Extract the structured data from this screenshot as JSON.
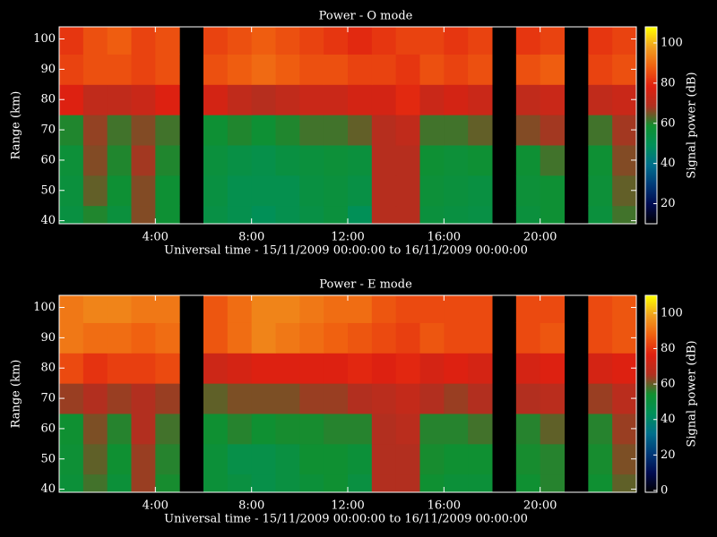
{
  "chart_data": [
    {
      "type": "heatmap",
      "title": "Power - O mode",
      "x_label": "Universal time - 15/11/2009 00:00:00 to 16/11/2009 00:00:00",
      "y_label": "Range (km)",
      "colorbar_label": "Signal power (dB)",
      "x": [
        0.5,
        1.5,
        2.5,
        3.5,
        4.5,
        5.5,
        6.5,
        7.5,
        8.5,
        9.5,
        10.5,
        11.5,
        12.5,
        13.5,
        14.5,
        15.5,
        16.5,
        17.5,
        18.5,
        19.5,
        20.5,
        21.5,
        22.5,
        23.5
      ],
      "y": [
        40,
        50,
        60,
        70,
        80,
        90,
        100
      ],
      "values": [
        [
          55,
          60,
          56,
          66,
          58,
          null,
          54,
          52,
          50,
          52,
          54,
          56,
          50,
          70,
          70,
          56,
          55,
          54,
          null,
          56,
          58,
          null,
          56,
          62
        ],
        [
          56,
          64,
          58,
          66,
          58,
          null,
          55,
          52,
          52,
          52,
          55,
          56,
          54,
          70,
          70,
          57,
          56,
          55,
          null,
          57,
          58,
          null,
          57,
          64
        ],
        [
          57,
          66,
          60,
          68,
          60,
          null,
          56,
          54,
          53,
          55,
          56,
          57,
          56,
          70,
          70,
          58,
          57,
          58,
          null,
          58,
          62,
          null,
          58,
          66
        ],
        [
          60,
          67,
          62,
          66,
          62,
          null,
          58,
          60,
          58,
          60,
          62,
          62,
          64,
          70,
          72,
          62,
          62,
          64,
          null,
          66,
          68,
          null,
          62,
          68
        ],
        [
          78,
          72,
          72,
          74,
          78,
          null,
          76,
          72,
          70,
          72,
          74,
          74,
          76,
          76,
          80,
          74,
          76,
          74,
          null,
          72,
          74,
          null,
          72,
          74
        ],
        [
          84,
          86,
          86,
          84,
          86,
          null,
          86,
          88,
          90,
          88,
          86,
          86,
          84,
          84,
          82,
          86,
          84,
          86,
          null,
          86,
          88,
          null,
          84,
          86
        ],
        [
          82,
          86,
          88,
          84,
          86,
          null,
          84,
          86,
          88,
          86,
          84,
          82,
          80,
          82,
          84,
          84,
          82,
          84,
          null,
          82,
          84,
          null,
          82,
          84
        ]
      ],
      "xlim": [
        0,
        24
      ],
      "ylim": [
        39,
        104
      ],
      "zlim": [
        10,
        108
      ],
      "xticks": [
        {
          "value": 4,
          "label": "4:00"
        },
        {
          "value": 8,
          "label": "8:00"
        },
        {
          "value": 12,
          "label": "12:00"
        },
        {
          "value": 16,
          "label": "16:00"
        },
        {
          "value": 20,
          "label": "20:00"
        }
      ],
      "yticks": [
        40,
        50,
        60,
        70,
        80,
        90,
        100
      ],
      "zticks": [
        20,
        40,
        60,
        80,
        100
      ],
      "colorscale": [
        "#000000",
        "#000a50",
        "#003a78",
        "#006e8c",
        "#00905a",
        "#109030",
        "#b03020",
        "#e02010",
        "#f06010",
        "#f0a020",
        "#ffff00"
      ]
    },
    {
      "type": "heatmap",
      "title": "Power - E mode",
      "x_label": "Universal time - 15/11/2009 00:00:00 to 16/11/2009 00:00:00",
      "y_label": "Range (km)",
      "colorbar_label": "Signal power (dB)",
      "x": [
        0.5,
        1.5,
        2.5,
        3.5,
        4.5,
        5.5,
        6.5,
        7.5,
        8.5,
        9.5,
        10.5,
        11.5,
        12.5,
        13.5,
        14.5,
        15.5,
        16.5,
        17.5,
        18.5,
        19.5,
        20.5,
        21.5,
        22.5,
        23.5
      ],
      "y": [
        40,
        50,
        60,
        70,
        80,
        90,
        100
      ],
      "values": [
        [
          52,
          58,
          52,
          64,
          55,
          null,
          52,
          50,
          48,
          50,
          52,
          54,
          50,
          66,
          66,
          54,
          52,
          52,
          null,
          54,
          56,
          null,
          54,
          60
        ],
        [
          53,
          60,
          54,
          64,
          56,
          null,
          52,
          48,
          48,
          50,
          54,
          54,
          52,
          66,
          66,
          55,
          54,
          54,
          null,
          55,
          56,
          null,
          55,
          62
        ],
        [
          54,
          62,
          56,
          66,
          58,
          null,
          54,
          56,
          54,
          55,
          55,
          56,
          56,
          66,
          68,
          56,
          56,
          58,
          null,
          56,
          60,
          null,
          56,
          64
        ],
        [
          64,
          66,
          64,
          66,
          64,
          null,
          60,
          62,
          62,
          62,
          64,
          64,
          66,
          68,
          70,
          66,
          64,
          66,
          null,
          66,
          68,
          null,
          64,
          68
        ],
        [
          84,
          80,
          82,
          82,
          84,
          null,
          72,
          74,
          76,
          76,
          76,
          76,
          78,
          76,
          78,
          74,
          76,
          74,
          null,
          74,
          76,
          null,
          74,
          76
        ],
        [
          92,
          90,
          90,
          88,
          90,
          null,
          86,
          90,
          94,
          92,
          90,
          88,
          86,
          84,
          82,
          86,
          84,
          84,
          null,
          84,
          86,
          null,
          84,
          86
        ],
        [
          92,
          94,
          94,
          92,
          92,
          null,
          86,
          90,
          94,
          94,
          92,
          90,
          90,
          86,
          84,
          84,
          84,
          84,
          null,
          84,
          84,
          null,
          84,
          86
        ]
      ],
      "xlim": [
        0,
        24
      ],
      "ylim": [
        39,
        104
      ],
      "zlim": [
        -1,
        110
      ],
      "xticks": [
        {
          "value": 4,
          "label": "4:00"
        },
        {
          "value": 8,
          "label": "8:00"
        },
        {
          "value": 12,
          "label": "12:00"
        },
        {
          "value": 16,
          "label": "16:00"
        },
        {
          "value": 20,
          "label": "20:00"
        }
      ],
      "yticks": [
        40,
        50,
        60,
        70,
        80,
        90,
        100
      ],
      "zticks": [
        0,
        20,
        40,
        60,
        80,
        100
      ],
      "colorscale": [
        "#000000",
        "#000a50",
        "#003a78",
        "#006e8c",
        "#00905a",
        "#109030",
        "#b03020",
        "#e02010",
        "#f06010",
        "#f0a020",
        "#ffff00"
      ]
    }
  ]
}
